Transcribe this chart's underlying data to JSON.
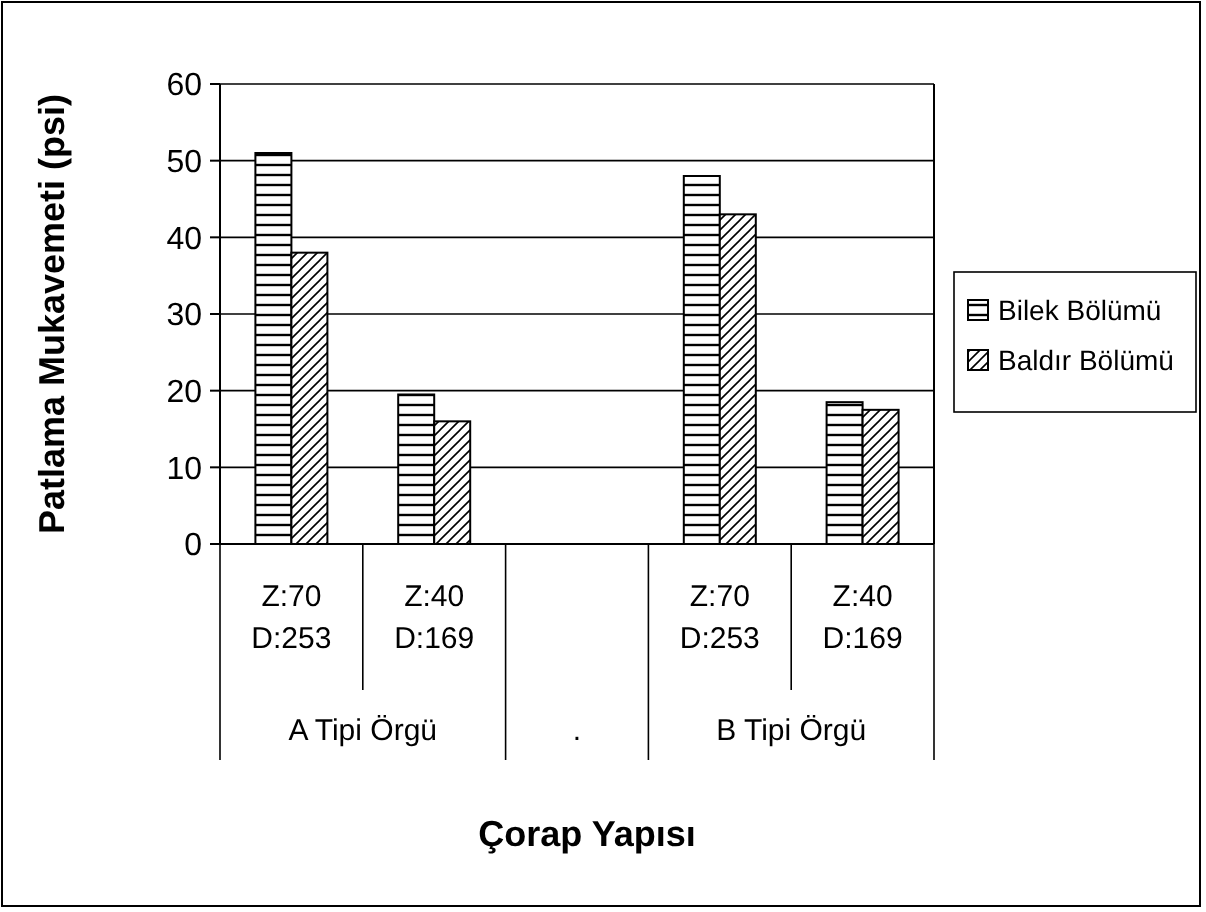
{
  "chart_data": {
    "type": "bar",
    "xlabel": "Çorap Yapısı",
    "ylabel": "Patlama Mukavemeti (psi)",
    "categories": [
      "Z:70 D:253",
      "Z:40 D:169",
      null,
      "Z:70 D:253",
      "Z:40 D:169"
    ],
    "series": [
      {
        "name": "Bilek Bölümü",
        "color": "#000000",
        "values": [
          51,
          19.5,
          null,
          48,
          18.5
        ]
      },
      {
        "name": "Baldır Bölümü",
        "color": "#000000",
        "values": [
          38,
          16,
          null,
          43,
          17.5
        ]
      }
    ],
    "annotations": [
      "A Tipi Örgü",
      ".",
      "B Tipi Örgü"
    ],
    "ylim": [
      0,
      60
    ],
    "yticks": [
      0,
      10,
      20,
      30,
      40,
      50,
      60
    ],
    "grid": "y",
    "legend": "right"
  }
}
